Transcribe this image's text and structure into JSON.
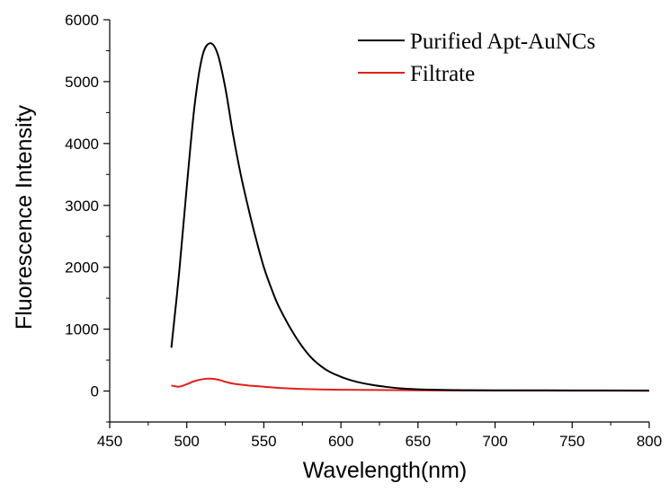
{
  "chart_data": {
    "type": "line",
    "title": "",
    "xlabel": "Wavelength(nm)",
    "ylabel": "Fluorescence Intensity",
    "xlim": [
      450,
      800
    ],
    "ylim": [
      -500,
      6000
    ],
    "xticks": [
      450,
      500,
      550,
      600,
      650,
      700,
      750,
      800
    ],
    "yticks": [
      0,
      1000,
      2000,
      3000,
      4000,
      5000,
      6000
    ],
    "legend_position": "top-right",
    "grid": false,
    "series": [
      {
        "name": "Purified Apt-AuNCs",
        "color": "#000000",
        "x": [
          490,
          495,
          500,
          505,
          510,
          515,
          520,
          525,
          530,
          535,
          540,
          545,
          550,
          555,
          560,
          570,
          580,
          590,
          600,
          610,
          620,
          630,
          640,
          650,
          660,
          680,
          700,
          750,
          800
        ],
        "y": [
          700,
          1900,
          3300,
          4600,
          5400,
          5620,
          5450,
          4900,
          4150,
          3500,
          2950,
          2450,
          2000,
          1650,
          1350,
          900,
          560,
          350,
          230,
          150,
          100,
          65,
          40,
          28,
          20,
          14,
          12,
          10,
          8
        ]
      },
      {
        "name": "Filtrate",
        "color": "#e0201b",
        "x": [
          490,
          495,
          500,
          505,
          510,
          515,
          520,
          525,
          530,
          540,
          550,
          560,
          580,
          600,
          650,
          700,
          750,
          800
        ],
        "y": [
          90,
          70,
          110,
          160,
          190,
          200,
          185,
          150,
          120,
          90,
          70,
          50,
          30,
          20,
          12,
          8,
          6,
          5
        ]
      }
    ]
  }
}
